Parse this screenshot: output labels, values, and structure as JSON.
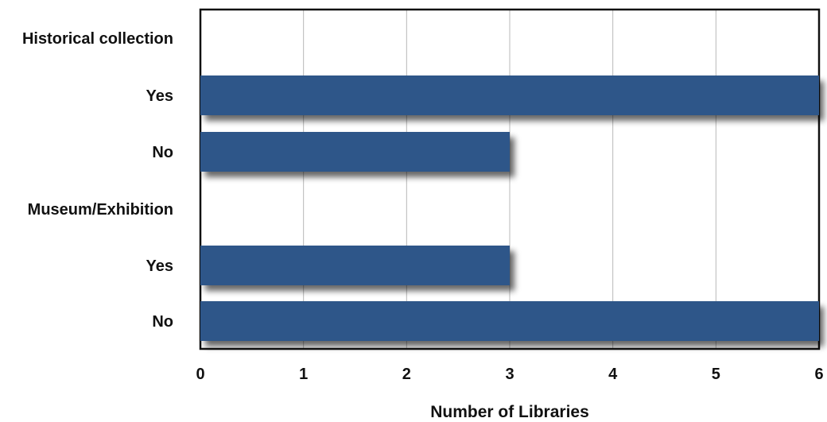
{
  "chart_data": {
    "type": "bar",
    "orientation": "horizontal",
    "rows": [
      {
        "label": "Historical collection",
        "value": null,
        "group_header": true
      },
      {
        "label": "Yes",
        "value": 6
      },
      {
        "label": "No",
        "value": 3
      },
      {
        "label": "Museum/Exhibition",
        "value": null,
        "group_header": true
      },
      {
        "label": "Yes",
        "value": 3
      },
      {
        "label": "No",
        "value": 6
      }
    ],
    "xlabel": "Number of Libraries",
    "ylabel": "",
    "title": "",
    "xlim": [
      0,
      6
    ],
    "xticks": [
      "0",
      "1",
      "2",
      "3",
      "4",
      "5",
      "6"
    ],
    "grid": "vertical",
    "bar_color": "#2F5789"
  }
}
